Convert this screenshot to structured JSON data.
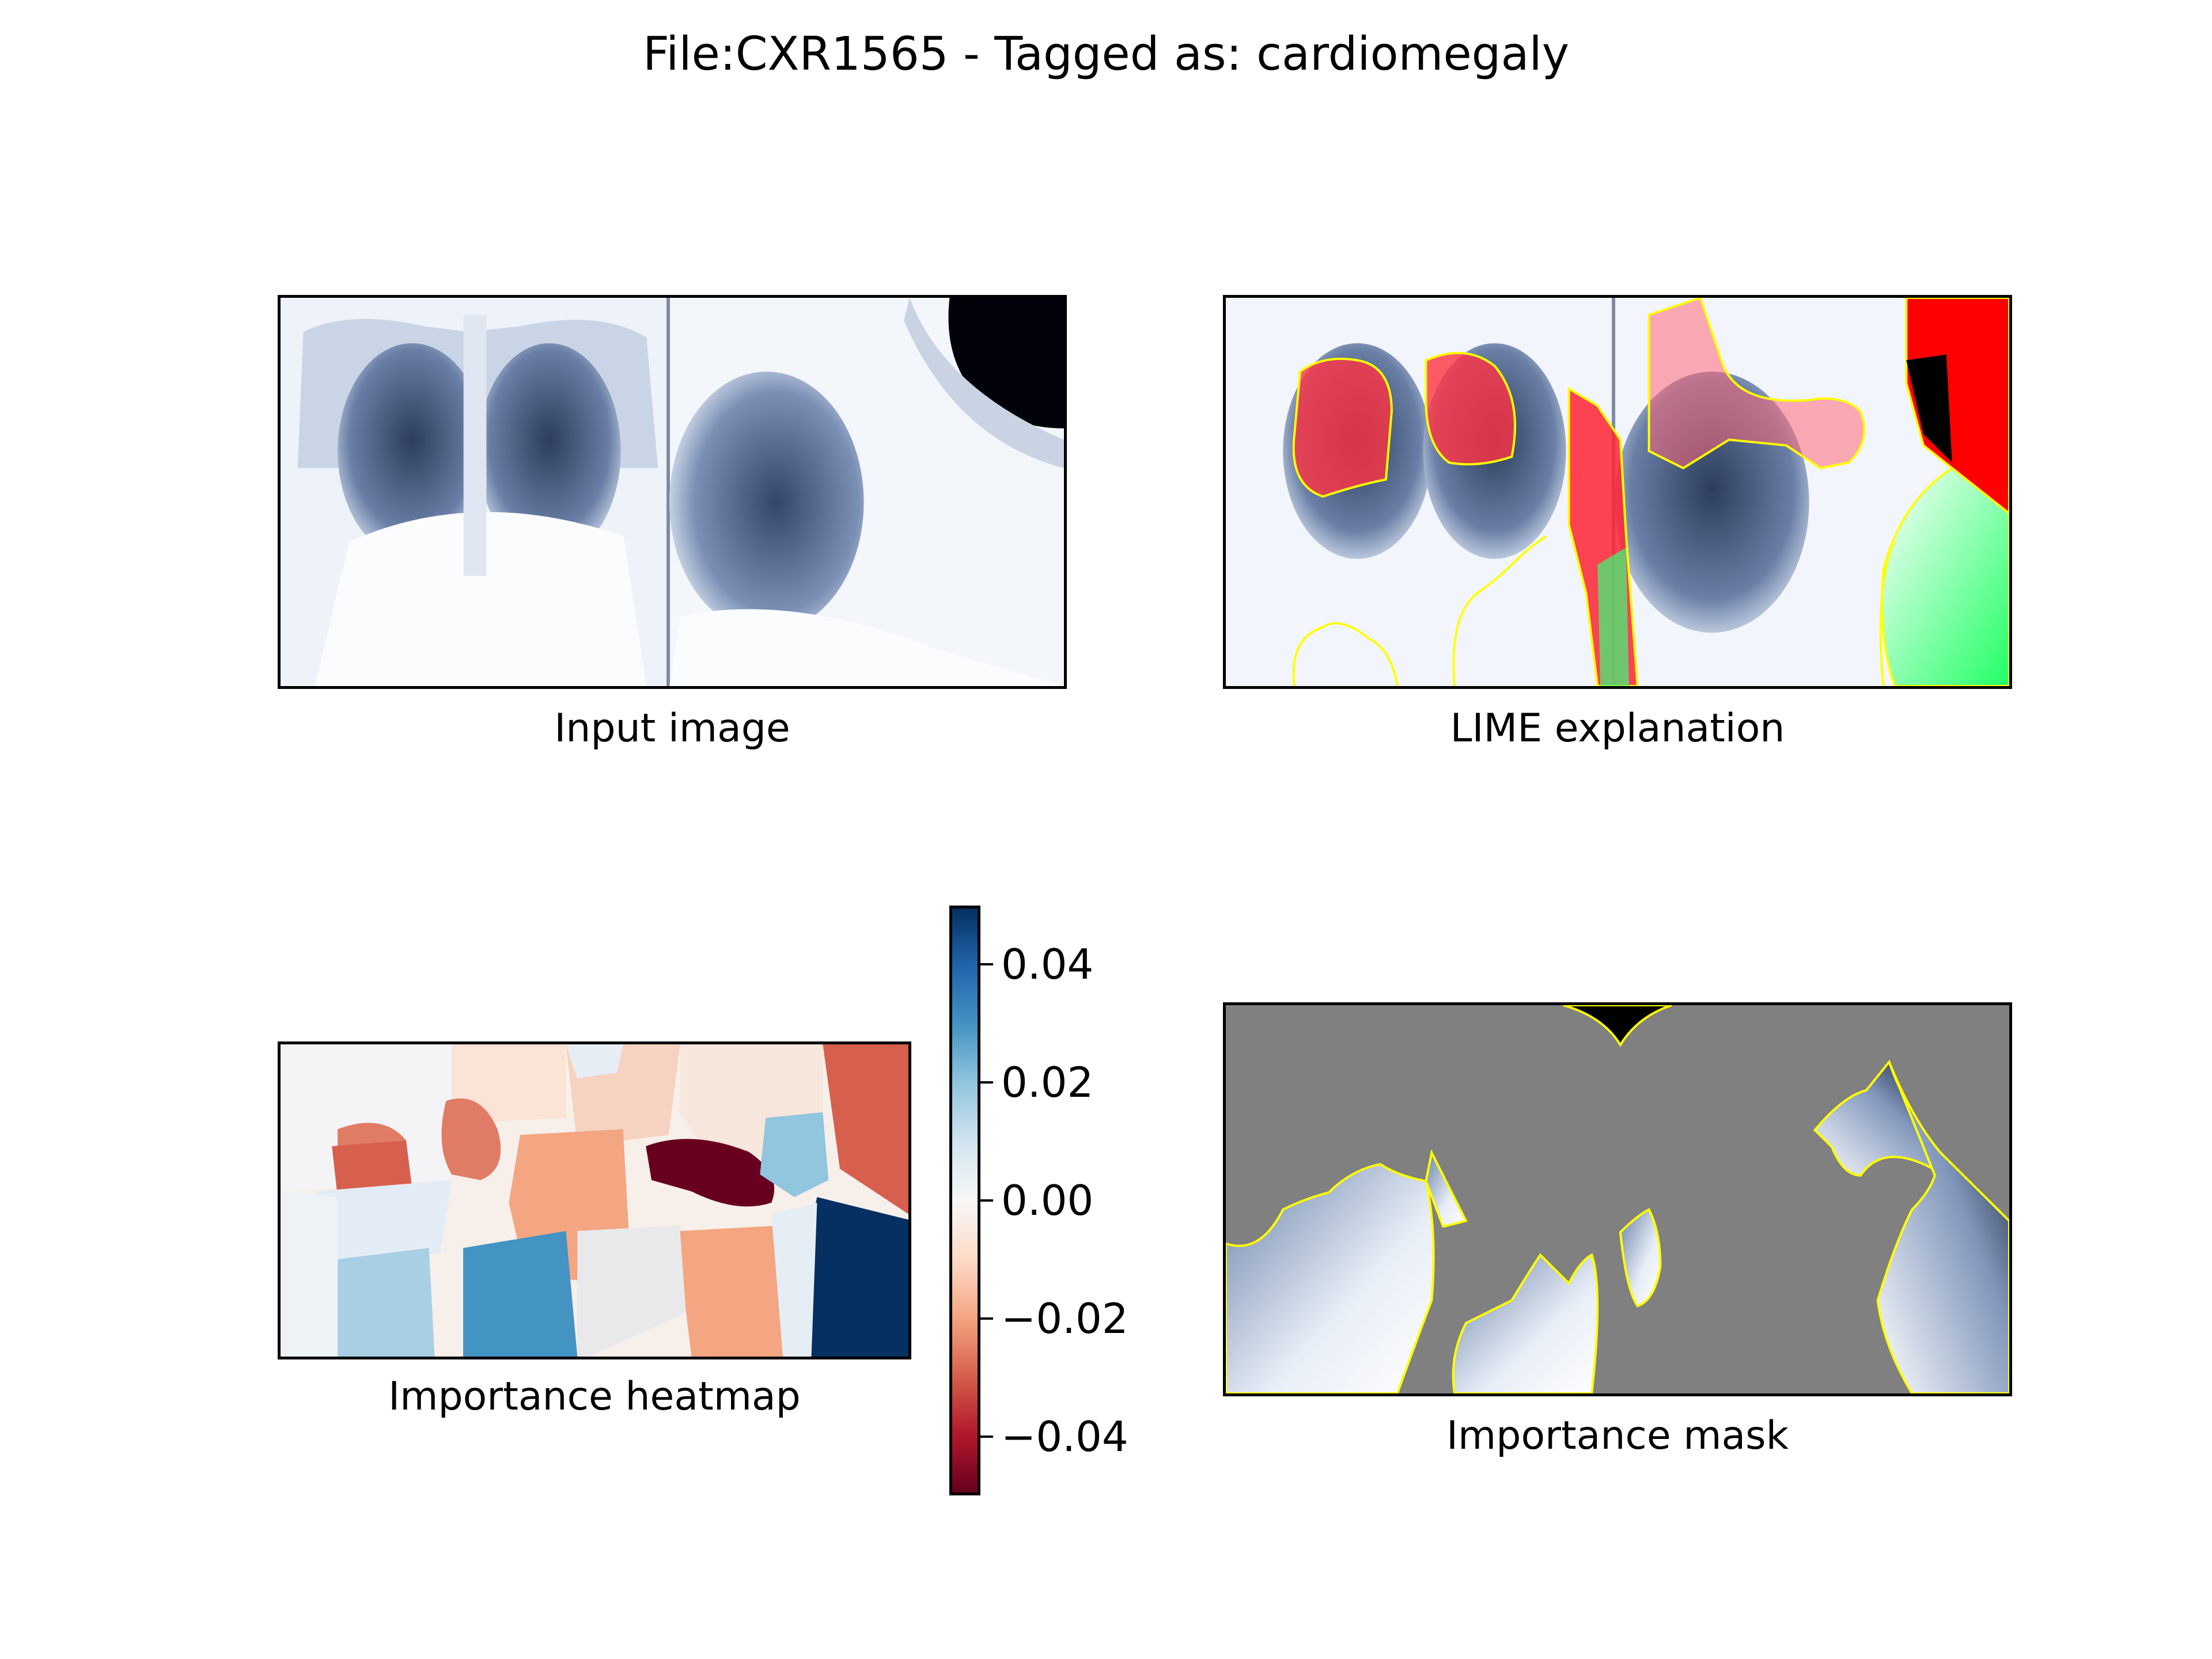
{
  "figure": {
    "title": "File:CXR1565 - Tagged as: cardiomegaly"
  },
  "panels": {
    "input": {
      "caption": "Input image"
    },
    "lime": {
      "caption": "LIME explanation"
    },
    "heatmap": {
      "caption": "Importance heatmap"
    },
    "mask": {
      "caption": "Importance mask"
    }
  },
  "chart_data": {
    "type": "heatmap",
    "colormap": "RdBu",
    "colorbar": {
      "range": [
        -0.05,
        0.05
      ],
      "ticks": [
        0.04,
        0.02,
        0.0,
        -0.02,
        -0.04
      ],
      "tick_labels": [
        "0.04",
        "0.02",
        "0.00",
        "−0.02",
        "−0.04"
      ]
    }
  },
  "colors": {
    "positive_region": "#ff0000",
    "negative_region": "#00ff66",
    "boundary": "#ffff00",
    "mask_background": "#808080"
  }
}
